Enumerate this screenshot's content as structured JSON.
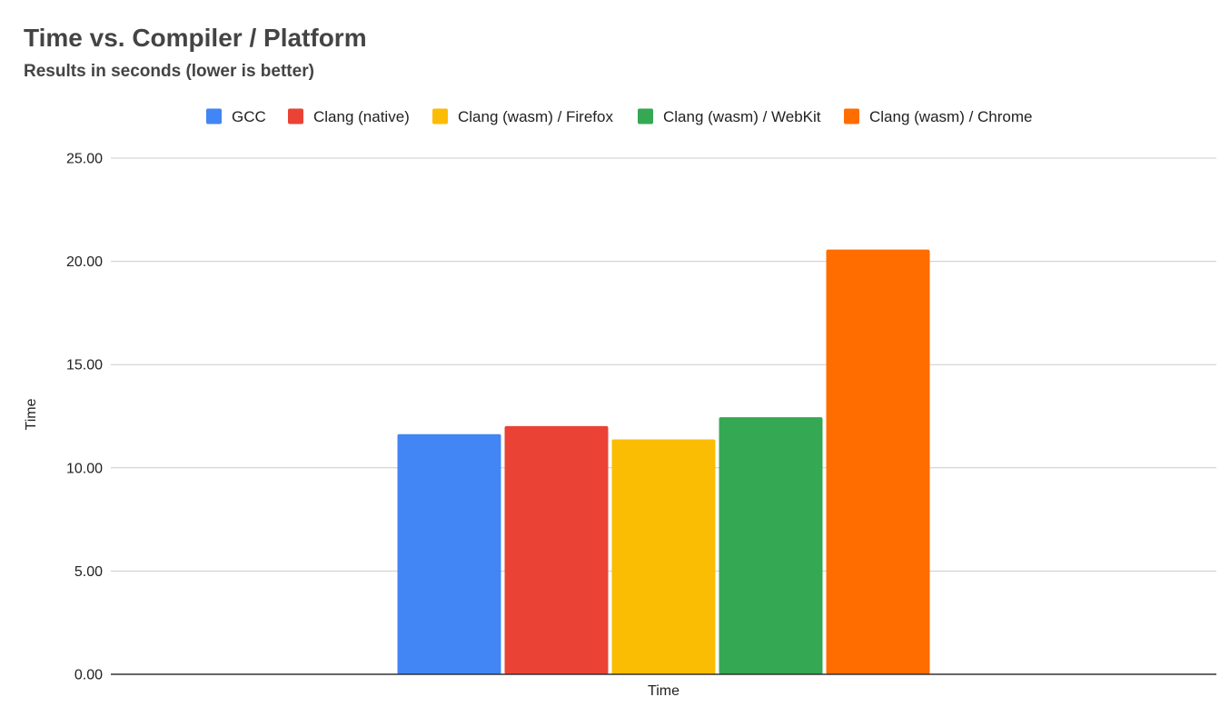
{
  "chart_data": {
    "type": "bar",
    "title": "Time vs. Compiler / Platform",
    "subtitle": "Results in seconds (lower is better)",
    "xlabel": "Time",
    "ylabel": "Time",
    "categories": [
      "Time"
    ],
    "series": [
      {
        "name": "GCC",
        "color": "#4285f4",
        "values": [
          11.63
        ]
      },
      {
        "name": "Clang (native)",
        "color": "#ea4335",
        "values": [
          12.02
        ]
      },
      {
        "name": "Clang (wasm) / Firefox",
        "color": "#fbbc04",
        "values": [
          11.38
        ]
      },
      {
        "name": "Clang (wasm) / WebKit",
        "color": "#34a853",
        "values": [
          12.45
        ]
      },
      {
        "name": "Clang (wasm) / Chrome",
        "color": "#ff6d01",
        "values": [
          20.57
        ]
      }
    ],
    "ylim": [
      0,
      25
    ],
    "yticks": [
      "0.00",
      "5.00",
      "10.00",
      "15.00",
      "20.00",
      "25.00"
    ],
    "grid": true,
    "legend_position": "top"
  }
}
